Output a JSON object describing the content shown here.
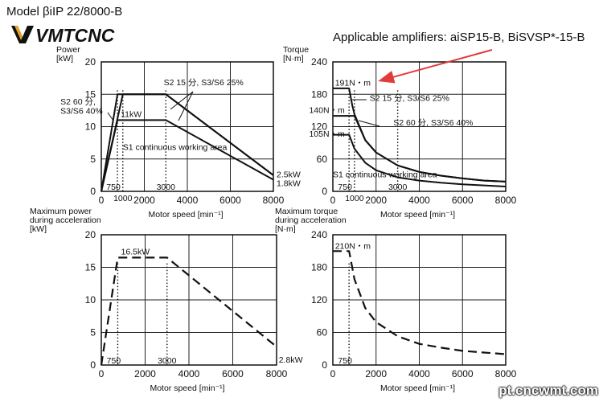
{
  "header": {
    "model_title": "Model βiIP 22/8000-B",
    "brand_logo_text": "VMTCNC",
    "amplifiers": "Applicable amplifiers: aiSP15-B, BiSVSP*-15-B",
    "watermark": "pt.cncwmt.com"
  },
  "colors": {
    "arrow": "#e23b3b",
    "line": "#111111",
    "grid": "#222222",
    "logo_accent": "#e8a020"
  },
  "chart_data": [
    {
      "id": "power",
      "type": "line",
      "ylabel_lines": [
        "Power",
        "[kW]"
      ],
      "xlabel": "Motor speed [min⁻¹]",
      "xlim": [
        0,
        8000
      ],
      "ylim": [
        0,
        20
      ],
      "xticks": [
        "0",
        "2000",
        "4000",
        "6000",
        "8000"
      ],
      "yticks": [
        "0",
        "5",
        "10",
        "15",
        "20"
      ],
      "grid": true,
      "series": [
        {
          "style": "solid",
          "x": [
            0,
            1000,
            3000,
            8000
          ],
          "y": [
            0,
            15,
            15,
            2.5
          ]
        },
        {
          "style": "solid",
          "x": [
            0,
            750,
            1000,
            3000,
            8000
          ],
          "y": [
            0,
            15,
            15,
            15,
            2.5
          ]
        },
        {
          "style": "solid",
          "x": [
            0,
            750,
            3000,
            8000
          ],
          "y": [
            0,
            11,
            11,
            1.8
          ]
        }
      ],
      "vlines": [
        {
          "x": 750,
          "label": "750"
        },
        {
          "x": 1000,
          "label": "1000"
        },
        {
          "x": 3000,
          "label": "3000"
        }
      ],
      "annotations": [
        {
          "text": "S2 15 分, S3/S6 25%",
          "x": 2900,
          "y": 16.4
        },
        {
          "text": "S2 60 分,",
          "x": -1900,
          "y": 13.4
        },
        {
          "text": "S3/S6 40%",
          "x": -1900,
          "y": 12.0
        },
        {
          "text": "11kW",
          "x": 900,
          "y": 11.5
        },
        {
          "text": "S1 continuous working area",
          "x": 1000,
          "y": 6.4
        },
        {
          "text": "2.5kW",
          "x": 8150,
          "y": 2.2
        },
        {
          "text": "1.8kW",
          "x": 8150,
          "y": 0.8
        }
      ]
    },
    {
      "id": "torque",
      "type": "line",
      "ylabel_lines": [
        "Torque",
        "[N·m]"
      ],
      "xlabel": "Motor speed [min⁻¹]",
      "xlim": [
        0,
        8000
      ],
      "ylim": [
        0,
        240
      ],
      "xticks": [
        "0",
        "2000",
        "4000",
        "6000",
        "8000"
      ],
      "yticks": [
        "0",
        "60",
        "120",
        "180",
        "240"
      ],
      "grid": true,
      "series": [
        {
          "style": "solid",
          "x": [
            0,
            750,
            900,
            1000,
            1500,
            2000,
            3000,
            4000,
            5000,
            6000,
            7000,
            8000
          ],
          "y": [
            191,
            191,
            159,
            143,
            95,
            72,
            48,
            36,
            29,
            24,
            20,
            18
          ]
        },
        {
          "style": "solid",
          "x": [
            0,
            1000,
            1500,
            2000,
            3000,
            4000,
            5000,
            6000,
            7000,
            8000
          ],
          "y": [
            140,
            140,
            95,
            72,
            48,
            36,
            29,
            24,
            20,
            18
          ]
        },
        {
          "style": "solid",
          "x": [
            0,
            750,
            1000,
            1500,
            2000,
            3000,
            4000,
            5000,
            6000,
            7000,
            8000
          ],
          "y": [
            105,
            105,
            79,
            53,
            39,
            26,
            20,
            16,
            13,
            11,
            9
          ]
        }
      ],
      "vlines": [
        {
          "x": 750,
          "label": "750"
        },
        {
          "x": 1000,
          "label": "1000"
        },
        {
          "x": 3000,
          "label": "3000"
        }
      ],
      "annotations": [
        {
          "text": "191N・m",
          "x": 100,
          "y": 196
        },
        {
          "text": "S2 15 分, S3/S6 25%",
          "x": 1700,
          "y": 168
        },
        {
          "text": "140N・m",
          "x": -1100,
          "y": 145
        },
        {
          "text": "S2 60 分, S3/S6 40%",
          "x": 2800,
          "y": 122
        },
        {
          "text": "105N・m",
          "x": -1100,
          "y": 101
        },
        {
          "text": "S1 continuous working area",
          "x": 0,
          "y": 26
        }
      ]
    },
    {
      "id": "max-power",
      "type": "line",
      "ylabel_lines": [
        "Maximum power",
        "during acceleration",
        "[kW]"
      ],
      "xlabel": "Motor speed [min⁻¹]",
      "xlim": [
        0,
        8000
      ],
      "ylim": [
        0,
        20
      ],
      "xticks": [
        "0",
        "2000",
        "4000",
        "6000",
        "8000"
      ],
      "yticks": [
        "0",
        "5",
        "10",
        "15",
        "20"
      ],
      "grid": true,
      "series": [
        {
          "style": "dashed",
          "x": [
            0,
            750,
            3000,
            8000
          ],
          "y": [
            0,
            16.5,
            16.5,
            2.8
          ]
        }
      ],
      "vlines": [
        {
          "x": 750,
          "label": "750"
        },
        {
          "x": 3000,
          "label": "3000"
        }
      ],
      "annotations": [
        {
          "text": "16.5kW",
          "x": 900,
          "y": 17.0
        },
        {
          "text": "2.8kW",
          "x": 8100,
          "y": 0.4
        }
      ]
    },
    {
      "id": "max-torque",
      "type": "line",
      "ylabel_lines": [
        "Maximum torque",
        "during acceleration",
        "[N·m]"
      ],
      "xlabel": "Motor speed [min⁻¹]",
      "xlim": [
        0,
        8000
      ],
      "ylim": [
        0,
        240
      ],
      "xticks": [
        "0",
        "2000",
        "4000",
        "6000",
        "8000"
      ],
      "yticks": [
        "0",
        "60",
        "120",
        "180",
        "240"
      ],
      "grid": true,
      "series": [
        {
          "style": "dashed",
          "x": [
            0,
            750,
            1000,
            1500,
            2000,
            3000,
            4000,
            5000,
            6000,
            7000,
            8000
          ],
          "y": [
            210,
            210,
            158,
            105,
            79,
            53,
            39,
            32,
            26,
            23,
            20
          ]
        }
      ],
      "vlines": [
        {
          "x": 750,
          "label": "750"
        }
      ],
      "annotations": [
        {
          "text": "210N・m",
          "x": 100,
          "y": 214
        }
      ]
    }
  ]
}
